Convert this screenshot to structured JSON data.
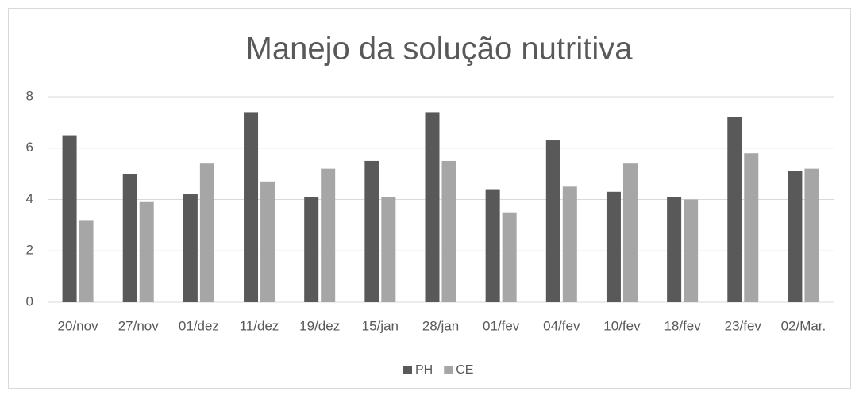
{
  "chart_data": {
    "type": "bar",
    "title": "Manejo da solução nutritiva",
    "categories": [
      "20/nov",
      "27/nov",
      "01/dez",
      "11/dez",
      "19/dez",
      "15/jan",
      "28/jan",
      "01/fev",
      "04/fev",
      "10/fev",
      "18/fev",
      "23/fev",
      "02/Mar."
    ],
    "series": [
      {
        "name": "PH",
        "color": "#595959",
        "values": [
          6.5,
          5.0,
          4.2,
          7.4,
          4.1,
          5.5,
          7.4,
          4.4,
          6.3,
          4.3,
          4.1,
          7.2,
          5.1
        ]
      },
      {
        "name": "CE",
        "color": "#a6a6a6",
        "values": [
          3.2,
          3.9,
          5.4,
          4.7,
          5.2,
          4.1,
          5.5,
          3.5,
          4.5,
          5.4,
          4.0,
          5.8,
          5.2
        ]
      }
    ],
    "ylim": [
      0,
      8
    ],
    "yticks": [
      0,
      2,
      4,
      6,
      8
    ],
    "grid": true,
    "legend": "bottom"
  }
}
